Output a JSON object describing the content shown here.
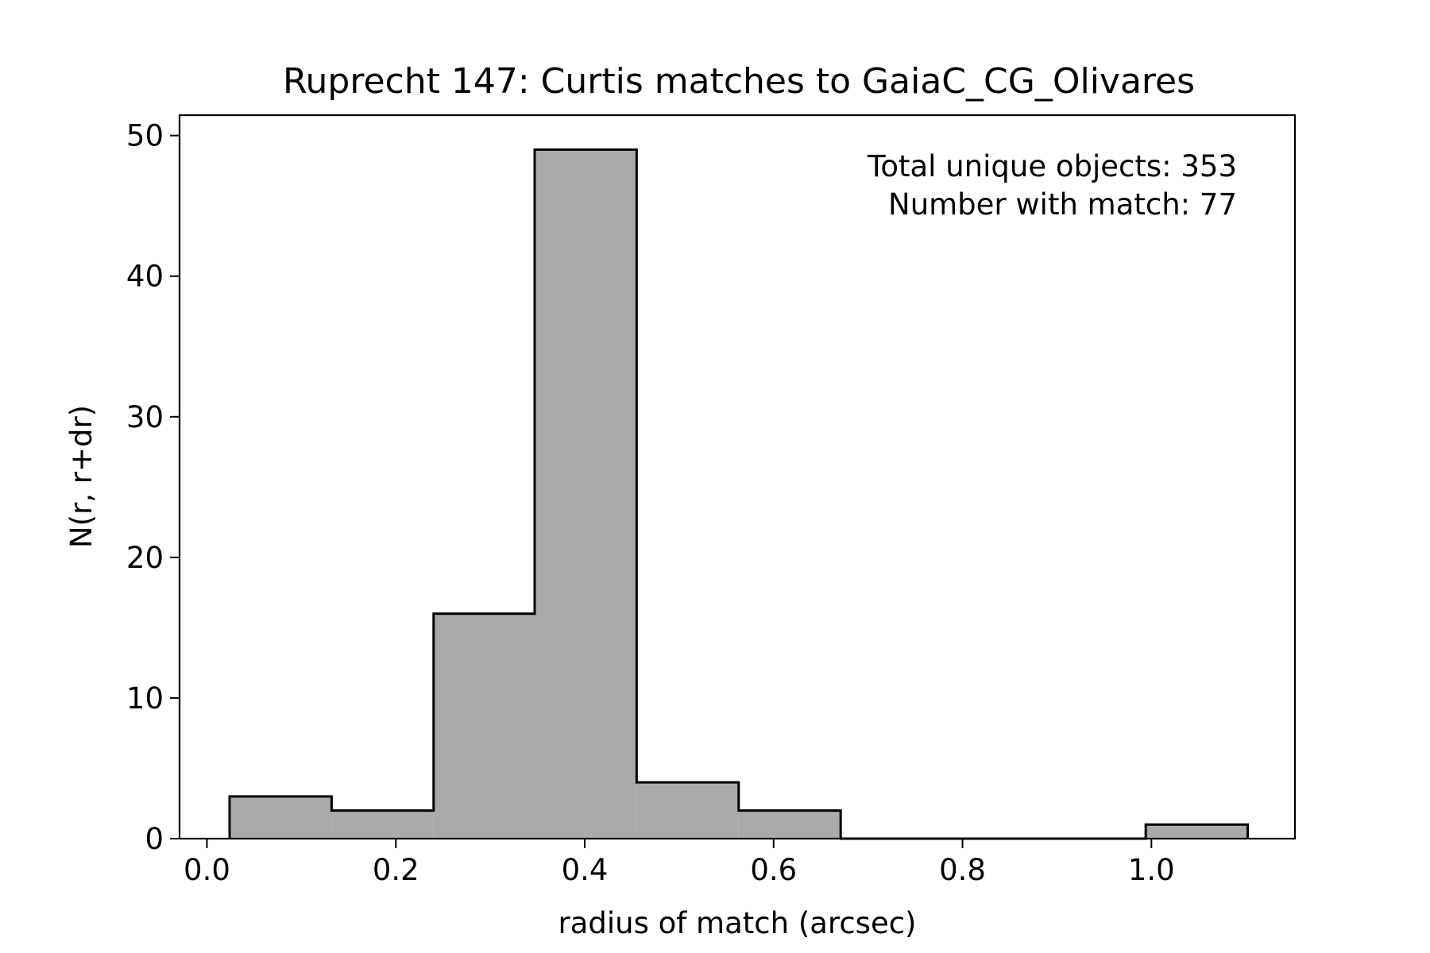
{
  "chart_data": {
    "type": "bar",
    "title": "Ruprecht 147: Curtis matches to GaiaC_CG_Olivares",
    "xlabel": "radius of match (arcsec)",
    "ylabel": "N(r, r+dr)",
    "xlim": [
      -0.029,
      1.152
    ],
    "ylim": [
      0,
      51.45
    ],
    "xticks": [
      0.0,
      0.2,
      0.4,
      0.6,
      0.8,
      1.0
    ],
    "xtick_labels": [
      "0.0",
      "0.2",
      "0.4",
      "0.6",
      "0.8",
      "1.0"
    ],
    "yticks": [
      0,
      10,
      20,
      30,
      40,
      50
    ],
    "ytick_labels": [
      "0",
      "10",
      "20",
      "30",
      "40",
      "50"
    ],
    "bin_edges": [
      0.024,
      0.132,
      0.24,
      0.347,
      0.455,
      0.563,
      0.671,
      0.778,
      0.886,
      0.994,
      1.102
    ],
    "counts": [
      3,
      2,
      16,
      49,
      4,
      2,
      0,
      0,
      0,
      1
    ],
    "bar_fill": "#aaaaaa",
    "bar_edge": "#000000",
    "grid": false,
    "annotations": [
      "Total unique objects: 353",
      "Number with match: 77"
    ],
    "annotation_position": "top-right"
  }
}
